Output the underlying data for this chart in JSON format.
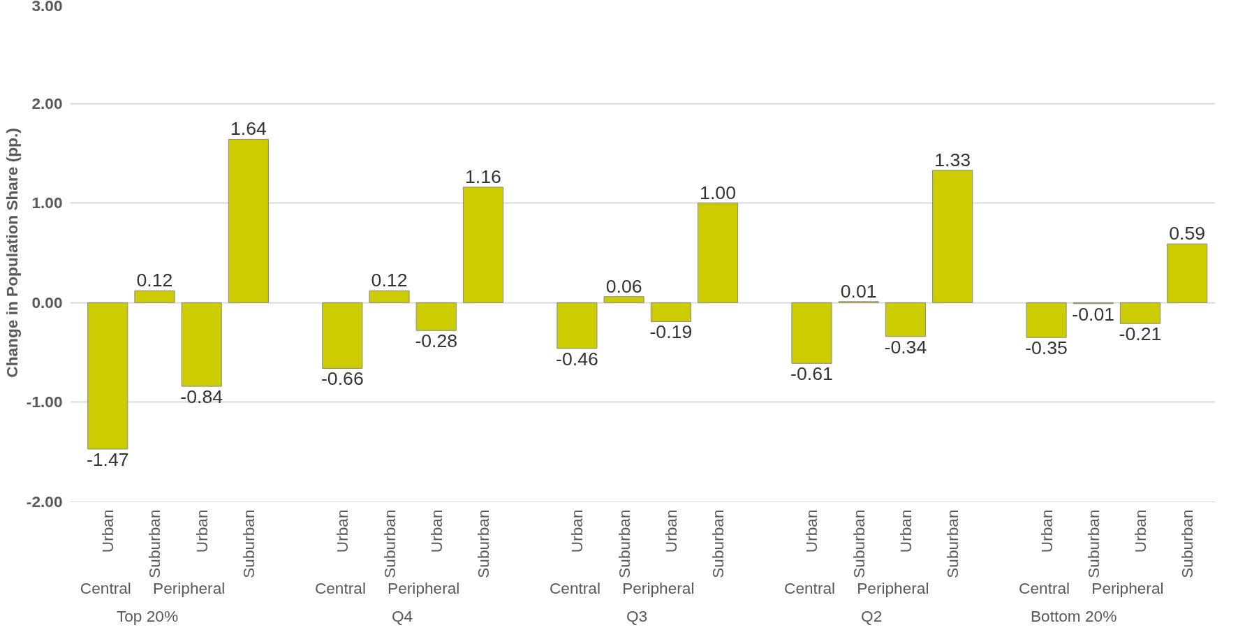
{
  "chart_data": {
    "type": "bar",
    "ylabel": "Change in Population Share (pp.)",
    "categories": [
      "Top 20%",
      "Q4",
      "Q3",
      "Q2",
      "Bottom 20%"
    ],
    "series": [
      {
        "color": "#cccc00",
        "values": [
          -1.47,
          -0.66,
          -0.46,
          -0.61,
          -0.35
        ],
        "value_labels": [
          "-1.47",
          "-0.66",
          "-0.46",
          "-0.61",
          "-0.35"
        ]
      },
      {
        "color": "#cccc00",
        "values": [
          0.12,
          0.12,
          0.06,
          0.01,
          -0.01
        ],
        "value_labels": [
          "0.12",
          "0.12",
          "0.06",
          "0.01",
          "-0.01"
        ]
      },
      {
        "color": "#cccc00",
        "values": [
          -0.84,
          -0.28,
          -0.19,
          -0.34,
          -0.21
        ],
        "value_labels": [
          "-0.84",
          "-0.28",
          "-0.19",
          "-0.34",
          "-0.21"
        ]
      },
      {
        "color": "#cccc00",
        "values": [
          1.64,
          1.16,
          1.0,
          1.33,
          0.59
        ],
        "value_labels": [
          "1.64",
          "1.16",
          "1.00",
          "1.33",
          "0.59"
        ]
      }
    ],
    "annotations": [
      "Urban",
      "Suburban",
      "Urban",
      "Suburban",
      "Urban",
      "Suburban",
      "Urban",
      "Suburban",
      "Urban",
      "Suburban",
      "Urban",
      "Suburban",
      "Urban",
      "Suburban",
      "Urban",
      "Suburban",
      "Urban",
      "Suburban",
      "Urban",
      "Suburban",
      "Central",
      "Peripheral",
      "Central",
      "Peripheral",
      "Central",
      "Peripheral",
      "Central",
      "Peripheral",
      "Central",
      "Peripheral"
    ],
    "ylim": [
      -2,
      3
    ],
    "yticks": [
      {
        "value": -2,
        "label": "-2.00"
      },
      {
        "value": -1,
        "label": "-1.00"
      },
      {
        "value": 0,
        "label": "0.00"
      },
      {
        "value": 1,
        "label": "1.00"
      },
      {
        "value": 2,
        "label": "2.00"
      },
      {
        "value": 3,
        "label": "3.00"
      }
    ],
    "grid": "y"
  }
}
